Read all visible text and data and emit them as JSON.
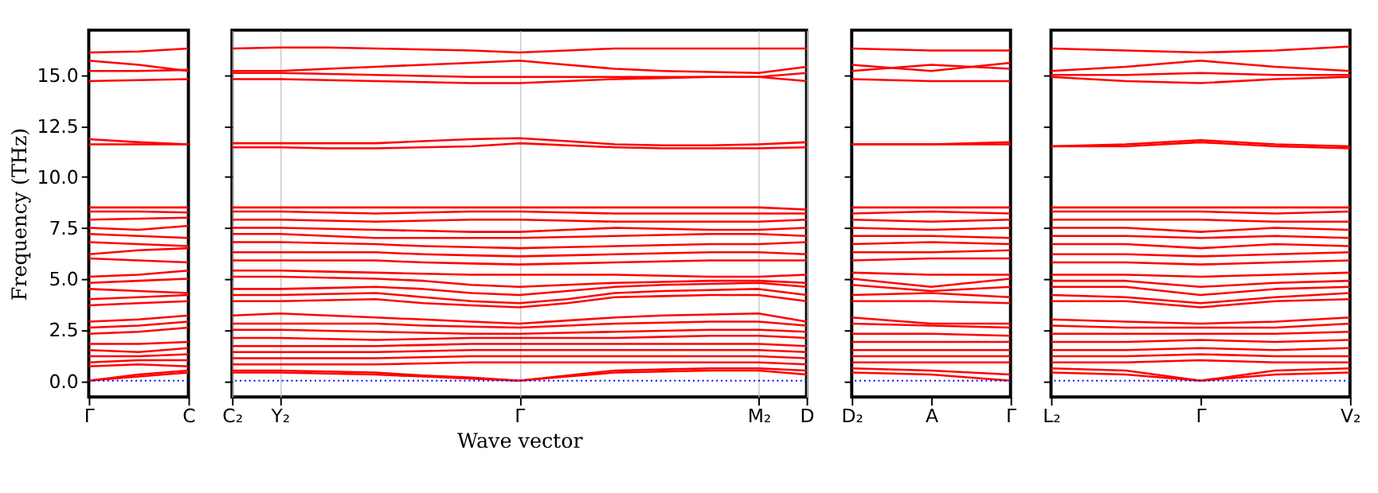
{
  "chart_data": [
    {
      "type": "line",
      "ylabel": "Frequency (THz)",
      "categories": [
        "Γ",
        null,
        "C"
      ],
      "ylim": [
        -0.8,
        17.2
      ],
      "yticks": [
        {
          "value": 0,
          "label": "0.0"
        },
        {
          "value": 2.5,
          "label": "2.5"
        },
        {
          "value": 5,
          "label": "5.0"
        },
        {
          "value": 7.5,
          "label": "7.5"
        },
        {
          "value": 10,
          "label": "10.0"
        },
        {
          "value": 12.5,
          "label": "12.5"
        },
        {
          "value": 15,
          "label": "15.0"
        }
      ],
      "ref_lines": [
        {
          "axis": "y",
          "value": 0,
          "color": "#0000ff",
          "line_style": "dotted"
        }
      ],
      "series": [
        {
          "color": "#ff0000",
          "values": [
            16.1,
            16.15,
            16.3
          ]
        },
        {
          "color": "#ff0000",
          "values": [
            15.7,
            15.5,
            15.2
          ]
        },
        {
          "color": "#ff0000",
          "values": [
            15.2,
            15.2,
            15.25
          ]
        },
        {
          "color": "#ff0000",
          "values": [
            14.7,
            14.75,
            14.8
          ]
        },
        {
          "color": "#ff0000",
          "values": [
            11.85,
            11.7,
            11.6
          ]
        },
        {
          "color": "#ff0000",
          "values": [
            11.6,
            11.6,
            11.6
          ]
        },
        {
          "color": "#ff0000",
          "values": [
            8.5,
            8.5,
            8.5
          ]
        },
        {
          "color": "#ff0000",
          "values": [
            8.3,
            8.3,
            8.25
          ]
        },
        {
          "color": "#ff0000",
          "values": [
            7.9,
            7.95,
            8.0
          ]
        },
        {
          "color": "#ff0000",
          "values": [
            7.5,
            7.4,
            7.6
          ]
        },
        {
          "color": "#ff0000",
          "values": [
            7.2,
            7.1,
            7.0
          ]
        },
        {
          "color": "#ff0000",
          "values": [
            6.8,
            6.7,
            6.6
          ]
        },
        {
          "color": "#ff0000",
          "values": [
            6.2,
            6.4,
            6.5
          ]
        },
        {
          "color": "#ff0000",
          "values": [
            6.0,
            5.9,
            5.8
          ]
        },
        {
          "color": "#ff0000",
          "values": [
            5.1,
            5.2,
            5.4
          ]
        },
        {
          "color": "#ff0000",
          "values": [
            4.8,
            4.9,
            5.0
          ]
        },
        {
          "color": "#ff0000",
          "values": [
            4.5,
            4.4,
            4.3
          ]
        },
        {
          "color": "#ff0000",
          "values": [
            4.0,
            4.1,
            4.2
          ]
        },
        {
          "color": "#ff0000",
          "values": [
            3.7,
            3.8,
            3.9
          ]
        },
        {
          "color": "#ff0000",
          "values": [
            2.9,
            3.0,
            3.2
          ]
        },
        {
          "color": "#ff0000",
          "values": [
            2.6,
            2.7,
            2.9
          ]
        },
        {
          "color": "#ff0000",
          "values": [
            2.3,
            2.4,
            2.6
          ]
        },
        {
          "color": "#ff0000",
          "values": [
            1.8,
            1.8,
            1.9
          ]
        },
        {
          "color": "#ff0000",
          "values": [
            1.5,
            1.4,
            1.6
          ]
        },
        {
          "color": "#ff0000",
          "values": [
            1.2,
            1.2,
            1.3
          ]
        },
        {
          "color": "#ff0000",
          "values": [
            0.9,
            1.0,
            1.0
          ]
        },
        {
          "color": "#ff0000",
          "values": [
            0.7,
            0.8,
            0.7
          ]
        },
        {
          "color": "#ff0000",
          "values": [
            0,
            0.3,
            0.5
          ]
        },
        {
          "color": "#ff0000",
          "values": [
            0,
            0.2,
            0.4
          ]
        }
      ]
    },
    {
      "type": "line",
      "xlabel": "Wave vector",
      "categories": [
        "C₂",
        "Y₂",
        null,
        null,
        null,
        null,
        "Γ",
        null,
        null,
        null,
        null,
        "M₂",
        "D"
      ],
      "ylim": [
        -0.8,
        17.2
      ],
      "yticks": [
        {
          "value": 0,
          "label": null
        },
        {
          "value": 2.5,
          "label": null
        },
        {
          "value": 5,
          "label": null
        },
        {
          "value": 7.5,
          "label": null
        },
        {
          "value": 10,
          "label": null
        },
        {
          "value": 12.5,
          "label": null
        },
        {
          "value": 15,
          "label": null
        }
      ],
      "grid": "x",
      "tick_labels": "x",
      "ref_lines": [
        {
          "axis": "y",
          "value": 0,
          "color": "#0000ff",
          "line_style": "dotted"
        }
      ],
      "series": [
        {
          "color": "#ff0000",
          "values": [
            16.3,
            16.35,
            16.35,
            16.3,
            16.25,
            16.2,
            16.1,
            16.2,
            16.3,
            16.3,
            16.3,
            16.3,
            16.3
          ]
        },
        {
          "color": "#ff0000",
          "values": [
            15.2,
            15.2,
            15.3,
            15.4,
            15.5,
            15.6,
            15.7,
            15.5,
            15.3,
            15.2,
            15.15,
            15.1,
            15.4
          ]
        },
        {
          "color": "#ff0000",
          "values": [
            15.1,
            15.1,
            15.05,
            15.0,
            14.95,
            14.9,
            14.9,
            14.9,
            14.9,
            14.9,
            14.9,
            14.9,
            15.1
          ]
        },
        {
          "color": "#ff0000",
          "values": [
            14.8,
            14.8,
            14.75,
            14.7,
            14.65,
            14.6,
            14.6,
            14.7,
            14.8,
            14.85,
            14.9,
            14.9,
            14.7
          ]
        },
        {
          "color": "#ff0000",
          "values": [
            11.65,
            11.65,
            11.65,
            11.65,
            11.75,
            11.85,
            11.9,
            11.75,
            11.6,
            11.55,
            11.55,
            11.6,
            11.7
          ]
        },
        {
          "color": "#ff0000",
          "values": [
            11.45,
            11.45,
            11.4,
            11.4,
            11.45,
            11.5,
            11.65,
            11.55,
            11.45,
            11.4,
            11.4,
            11.4,
            11.45
          ]
        },
        {
          "color": "#ff0000",
          "values": [
            8.5,
            8.5,
            8.5,
            8.5,
            8.5,
            8.5,
            8.5,
            8.5,
            8.5,
            8.5,
            8.5,
            8.5,
            8.4
          ]
        },
        {
          "color": "#ff0000",
          "values": [
            8.3,
            8.3,
            8.25,
            8.2,
            8.25,
            8.3,
            8.3,
            8.25,
            8.2,
            8.2,
            8.2,
            8.2,
            8.2
          ]
        },
        {
          "color": "#ff0000",
          "values": [
            7.9,
            7.9,
            7.85,
            7.8,
            7.85,
            7.9,
            7.9,
            7.85,
            7.8,
            7.8,
            7.8,
            7.8,
            7.9
          ]
        },
        {
          "color": "#ff0000",
          "values": [
            7.5,
            7.5,
            7.45,
            7.4,
            7.35,
            7.3,
            7.3,
            7.4,
            7.5,
            7.45,
            7.4,
            7.4,
            7.5
          ]
        },
        {
          "color": "#ff0000",
          "values": [
            7.2,
            7.2,
            7.1,
            7.0,
            7.0,
            7.0,
            7.0,
            7.05,
            7.1,
            7.15,
            7.2,
            7.2,
            7.1
          ]
        },
        {
          "color": "#ff0000",
          "values": [
            6.8,
            6.8,
            6.75,
            6.7,
            6.6,
            6.55,
            6.5,
            6.55,
            6.6,
            6.65,
            6.7,
            6.7,
            6.8
          ]
        },
        {
          "color": "#ff0000",
          "values": [
            6.3,
            6.3,
            6.3,
            6.3,
            6.2,
            6.15,
            6.1,
            6.15,
            6.2,
            6.25,
            6.3,
            6.3,
            6.2
          ]
        },
        {
          "color": "#ff0000",
          "values": [
            5.9,
            5.9,
            5.9,
            5.9,
            5.8,
            5.75,
            5.7,
            5.75,
            5.8,
            5.85,
            5.9,
            5.9,
            5.9
          ]
        },
        {
          "color": "#ff0000",
          "values": [
            5.4,
            5.4,
            5.35,
            5.3,
            5.25,
            5.2,
            5.2,
            5.2,
            5.2,
            5.15,
            5.1,
            5.1,
            5.2
          ]
        },
        {
          "color": "#ff0000",
          "values": [
            5.1,
            5.1,
            5.05,
            5.0,
            4.9,
            4.7,
            4.6,
            4.7,
            4.8,
            4.85,
            4.9,
            4.9,
            4.8
          ]
        },
        {
          "color": "#ff0000",
          "values": [
            4.5,
            4.5,
            4.55,
            4.6,
            4.5,
            4.3,
            4.2,
            4.4,
            4.6,
            4.7,
            4.75,
            4.8,
            4.6
          ]
        },
        {
          "color": "#ff0000",
          "values": [
            4.2,
            4.2,
            4.25,
            4.3,
            4.1,
            3.9,
            3.8,
            4.0,
            4.3,
            4.4,
            4.45,
            4.5,
            4.2
          ]
        },
        {
          "color": "#ff0000",
          "values": [
            3.9,
            3.9,
            3.95,
            4.0,
            3.8,
            3.7,
            3.6,
            3.8,
            4.1,
            4.15,
            4.2,
            4.2,
            3.9
          ]
        },
        {
          "color": "#ff0000",
          "values": [
            3.2,
            3.3,
            3.2,
            3.1,
            3.0,
            2.9,
            2.8,
            2.95,
            3.1,
            3.2,
            3.25,
            3.3,
            2.9
          ]
        },
        {
          "color": "#ff0000",
          "values": [
            2.8,
            2.8,
            2.8,
            2.8,
            2.7,
            2.65,
            2.6,
            2.7,
            2.8,
            2.85,
            2.9,
            2.9,
            2.7
          ]
        },
        {
          "color": "#ff0000",
          "values": [
            2.5,
            2.5,
            2.45,
            2.4,
            2.35,
            2.3,
            2.3,
            2.35,
            2.4,
            2.45,
            2.5,
            2.5,
            2.4
          ]
        },
        {
          "color": "#ff0000",
          "values": [
            2.1,
            2.1,
            2.05,
            2.0,
            2.05,
            2.1,
            2.1,
            2.1,
            2.1,
            2.15,
            2.2,
            2.2,
            2.1
          ]
        },
        {
          "color": "#ff0000",
          "values": [
            1.7,
            1.7,
            1.7,
            1.7,
            1.75,
            1.8,
            1.8,
            1.8,
            1.8,
            1.8,
            1.8,
            1.8,
            1.7
          ]
        },
        {
          "color": "#ff0000",
          "values": [
            1.4,
            1.4,
            1.4,
            1.4,
            1.45,
            1.5,
            1.5,
            1.5,
            1.5,
            1.5,
            1.5,
            1.5,
            1.4
          ]
        },
        {
          "color": "#ff0000",
          "values": [
            1.1,
            1.1,
            1.1,
            1.1,
            1.15,
            1.2,
            1.2,
            1.2,
            1.2,
            1.2,
            1.2,
            1.2,
            1.1
          ]
        },
        {
          "color": "#ff0000",
          "values": [
            0.8,
            0.8,
            0.8,
            0.8,
            0.85,
            0.9,
            0.9,
            0.9,
            0.9,
            0.9,
            0.9,
            0.9,
            0.8
          ]
        },
        {
          "color": "#ff0000",
          "values": [
            0.5,
            0.5,
            0.45,
            0.4,
            0.25,
            0.15,
            0,
            0.25,
            0.5,
            0.55,
            0.6,
            0.6,
            0.5
          ]
        },
        {
          "color": "#ff0000",
          "values": [
            0.4,
            0.4,
            0.35,
            0.3,
            0.2,
            0.1,
            0,
            0.2,
            0.4,
            0.45,
            0.5,
            0.5,
            0.3
          ]
        }
      ]
    },
    {
      "type": "line",
      "categories": [
        "D₂",
        "A",
        "Γ"
      ],
      "ylim": [
        -0.8,
        17.2
      ],
      "yticks": [
        {
          "value": 0,
          "label": null
        },
        {
          "value": 2.5,
          "label": null
        },
        {
          "value": 5,
          "label": null
        },
        {
          "value": 7.5,
          "label": null
        },
        {
          "value": 10,
          "label": null
        },
        {
          "value": 12.5,
          "label": null
        },
        {
          "value": 15,
          "label": null
        }
      ],
      "tick_labels": "x",
      "ref_lines": [
        {
          "axis": "y",
          "value": 0,
          "color": "#0000ff",
          "line_style": "dotted"
        }
      ],
      "series": [
        {
          "color": "#ff0000",
          "values": [
            16.3,
            16.2,
            16.2
          ]
        },
        {
          "color": "#ff0000",
          "values": [
            15.5,
            15.2,
            15.6
          ]
        },
        {
          "color": "#ff0000",
          "values": [
            15.2,
            15.5,
            15.3
          ]
        },
        {
          "color": "#ff0000",
          "values": [
            14.8,
            14.7,
            14.7
          ]
        },
        {
          "color": "#ff0000",
          "values": [
            11.6,
            11.6,
            11.7
          ]
        },
        {
          "color": "#ff0000",
          "values": [
            11.6,
            11.6,
            11.6
          ]
        },
        {
          "color": "#ff0000",
          "values": [
            8.5,
            8.5,
            8.5
          ]
        },
        {
          "color": "#ff0000",
          "values": [
            8.2,
            8.3,
            8.2
          ]
        },
        {
          "color": "#ff0000",
          "values": [
            7.9,
            7.8,
            7.9
          ]
        },
        {
          "color": "#ff0000",
          "values": [
            7.5,
            7.4,
            7.5
          ]
        },
        {
          "color": "#ff0000",
          "values": [
            7.1,
            7.1,
            7.0
          ]
        },
        {
          "color": "#ff0000",
          "values": [
            6.7,
            6.8,
            6.7
          ]
        },
        {
          "color": "#ff0000",
          "values": [
            6.3,
            6.3,
            6.4
          ]
        },
        {
          "color": "#ff0000",
          "values": [
            5.9,
            6.0,
            6.0
          ]
        },
        {
          "color": "#ff0000",
          "values": [
            5.3,
            5.2,
            5.2
          ]
        },
        {
          "color": "#ff0000",
          "values": [
            5.0,
            4.6,
            5.0
          ]
        },
        {
          "color": "#ff0000",
          "values": [
            4.7,
            4.4,
            4.6
          ]
        },
        {
          "color": "#ff0000",
          "values": [
            4.2,
            4.3,
            4.1
          ]
        },
        {
          "color": "#ff0000",
          "values": [
            3.9,
            3.9,
            3.8
          ]
        },
        {
          "color": "#ff0000",
          "values": [
            3.1,
            2.8,
            2.8
          ]
        },
        {
          "color": "#ff0000",
          "values": [
            2.8,
            2.7,
            2.6
          ]
        },
        {
          "color": "#ff0000",
          "values": [
            2.3,
            2.3,
            2.2
          ]
        },
        {
          "color": "#ff0000",
          "values": [
            1.9,
            1.9,
            1.9
          ]
        },
        {
          "color": "#ff0000",
          "values": [
            1.5,
            1.5,
            1.5
          ]
        },
        {
          "color": "#ff0000",
          "values": [
            1.2,
            1.2,
            1.2
          ]
        },
        {
          "color": "#ff0000",
          "values": [
            0.9,
            0.9,
            0.9
          ]
        },
        {
          "color": "#ff0000",
          "values": [
            0.6,
            0.5,
            0.3
          ]
        },
        {
          "color": "#ff0000",
          "values": [
            0.4,
            0.3,
            0
          ]
        }
      ]
    },
    {
      "type": "line",
      "categories": [
        "L₂",
        null,
        "Γ",
        null,
        "V₂"
      ],
      "ylim": [
        -0.8,
        17.2
      ],
      "yticks": [
        {
          "value": 0,
          "label": null
        },
        {
          "value": 2.5,
          "label": null
        },
        {
          "value": 5,
          "label": null
        },
        {
          "value": 7.5,
          "label": null
        },
        {
          "value": 10,
          "label": null
        },
        {
          "value": 12.5,
          "label": null
        },
        {
          "value": 15,
          "label": null
        }
      ],
      "tick_labels": "x",
      "ref_lines": [
        {
          "axis": "y",
          "value": 0,
          "color": "#0000ff",
          "line_style": "dotted"
        }
      ],
      "series": [
        {
          "color": "#ff0000",
          "values": [
            16.3,
            16.2,
            16.1,
            16.2,
            16.4
          ]
        },
        {
          "color": "#ff0000",
          "values": [
            15.2,
            15.4,
            15.7,
            15.4,
            15.2
          ]
        },
        {
          "color": "#ff0000",
          "values": [
            15.0,
            15.0,
            15.1,
            15.0,
            15.0
          ]
        },
        {
          "color": "#ff0000",
          "values": [
            14.9,
            14.7,
            14.6,
            14.8,
            14.9
          ]
        },
        {
          "color": "#ff0000",
          "values": [
            11.5,
            11.6,
            11.8,
            11.6,
            11.5
          ]
        },
        {
          "color": "#ff0000",
          "values": [
            11.5,
            11.5,
            11.7,
            11.5,
            11.4
          ]
        },
        {
          "color": "#ff0000",
          "values": [
            8.5,
            8.5,
            8.5,
            8.5,
            8.5
          ]
        },
        {
          "color": "#ff0000",
          "values": [
            8.3,
            8.3,
            8.3,
            8.2,
            8.3
          ]
        },
        {
          "color": "#ff0000",
          "values": [
            7.9,
            7.9,
            7.9,
            7.8,
            7.8
          ]
        },
        {
          "color": "#ff0000",
          "values": [
            7.5,
            7.5,
            7.3,
            7.5,
            7.4
          ]
        },
        {
          "color": "#ff0000",
          "values": [
            7.1,
            7.1,
            7.0,
            7.1,
            7.0
          ]
        },
        {
          "color": "#ff0000",
          "values": [
            6.7,
            6.7,
            6.5,
            6.7,
            6.6
          ]
        },
        {
          "color": "#ff0000",
          "values": [
            6.2,
            6.2,
            6.1,
            6.2,
            6.3
          ]
        },
        {
          "color": "#ff0000",
          "values": [
            5.8,
            5.8,
            5.7,
            5.8,
            5.9
          ]
        },
        {
          "color": "#ff0000",
          "values": [
            5.2,
            5.2,
            5.1,
            5.2,
            5.3
          ]
        },
        {
          "color": "#ff0000",
          "values": [
            4.9,
            4.9,
            4.6,
            4.8,
            4.9
          ]
        },
        {
          "color": "#ff0000",
          "values": [
            4.6,
            4.6,
            4.2,
            4.5,
            4.6
          ]
        },
        {
          "color": "#ff0000",
          "values": [
            4.2,
            4.1,
            3.8,
            4.1,
            4.3
          ]
        },
        {
          "color": "#ff0000",
          "values": [
            3.9,
            3.9,
            3.6,
            3.9,
            4.0
          ]
        },
        {
          "color": "#ff0000",
          "values": [
            3.0,
            2.9,
            2.8,
            2.9,
            3.1
          ]
        },
        {
          "color": "#ff0000",
          "values": [
            2.7,
            2.6,
            2.6,
            2.6,
            2.8
          ]
        },
        {
          "color": "#ff0000",
          "values": [
            2.3,
            2.3,
            2.3,
            2.3,
            2.4
          ]
        },
        {
          "color": "#ff0000",
          "values": [
            1.9,
            1.9,
            2.0,
            1.9,
            2.0
          ]
        },
        {
          "color": "#ff0000",
          "values": [
            1.5,
            1.5,
            1.6,
            1.5,
            1.6
          ]
        },
        {
          "color": "#ff0000",
          "values": [
            1.2,
            1.2,
            1.3,
            1.2,
            1.2
          ]
        },
        {
          "color": "#ff0000",
          "values": [
            0.9,
            0.9,
            1.0,
            0.9,
            0.9
          ]
        },
        {
          "color": "#ff0000",
          "values": [
            0.6,
            0.5,
            0,
            0.5,
            0.6
          ]
        },
        {
          "color": "#ff0000",
          "values": [
            0.4,
            0.3,
            0,
            0.3,
            0.4
          ]
        }
      ]
    }
  ]
}
